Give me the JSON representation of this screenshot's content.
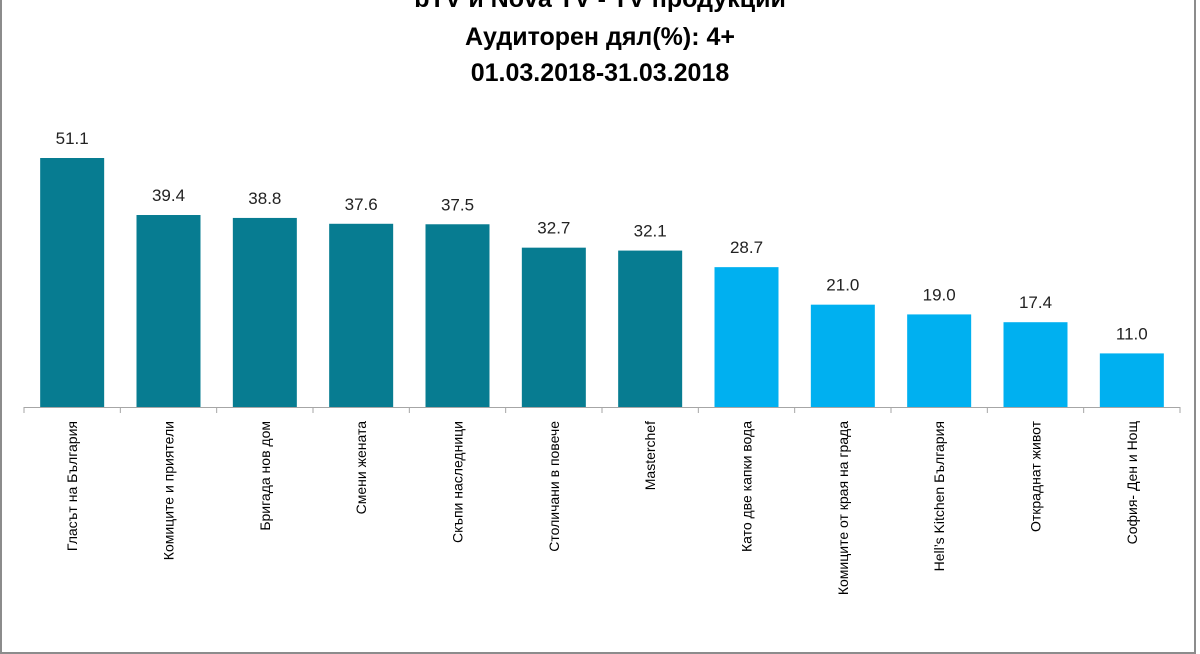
{
  "chart_data": {
    "type": "bar",
    "title": [
      "bTV и Nova TV - TV продукции",
      "Аудиторен дял(%): 4+",
      "01.03.2018-31.03.2018"
    ],
    "categories": [
      "Гласът на България",
      "Комиците и приятели",
      "Бригада нов дом",
      "Смени жената",
      "Скъпи наследници",
      "Столичани в повече",
      "Masterchef",
      "Като две капки вода",
      "Комиците от края на града",
      "Hell’s Kitchen България",
      "Откраднат живот",
      "София- Ден и Нощ"
    ],
    "values": [
      51.1,
      39.4,
      38.8,
      37.6,
      37.5,
      32.7,
      32.1,
      28.7,
      21.0,
      19.0,
      17.4,
      11.0
    ],
    "value_labels": [
      "51.1",
      "39.4",
      "38.8",
      "37.6",
      "37.5",
      "32.7",
      "32.1",
      "28.7",
      "21.0",
      "19.0",
      "17.4",
      "11.0"
    ],
    "bar_colors": [
      "#077c91",
      "#077c91",
      "#077c91",
      "#077c91",
      "#077c91",
      "#077c91",
      "#077c91",
      "#00b0f0",
      "#00b0f0",
      "#00b0f0",
      "#00b0f0",
      "#00b0f0"
    ],
    "ylim": [
      0,
      55
    ],
    "grid": false,
    "legend": "none",
    "xlabel": "",
    "ylabel": ""
  }
}
